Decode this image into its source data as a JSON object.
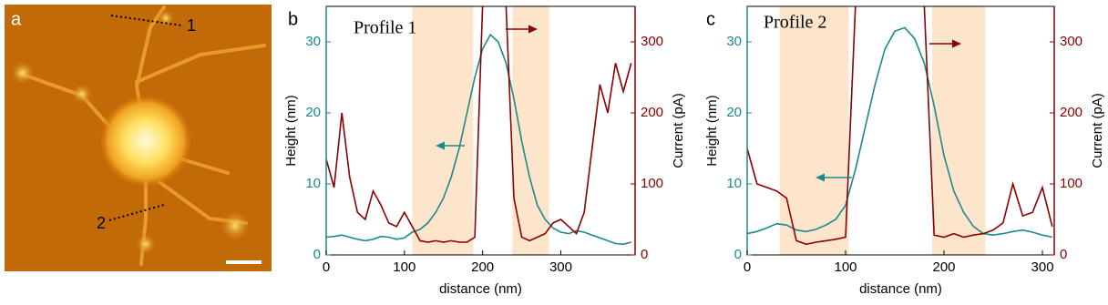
{
  "image_panel": {
    "label": "a",
    "markers": [
      "1",
      "2"
    ]
  },
  "chart_data": [
    {
      "type": "line",
      "panel_label": "b",
      "title": "Profile 1",
      "xlabel": "distance (nm)",
      "ylabel": "Height (nm)",
      "y2label": "Current (pA)",
      "xlim": [
        0,
        395
      ],
      "xticks": [
        0,
        100,
        200,
        300
      ],
      "ylim": [
        0,
        35
      ],
      "yticks": [
        0,
        10,
        20,
        30
      ],
      "y2lim": [
        0,
        350
      ],
      "y2ticks": [
        0,
        100,
        200,
        300
      ],
      "highlights": [
        [
          110,
          188
        ],
        [
          238,
          285
        ]
      ],
      "highlight_color": "#fde5cc",
      "x": [
        0,
        10,
        20,
        30,
        40,
        50,
        60,
        70,
        80,
        90,
        100,
        110,
        120,
        130,
        140,
        150,
        160,
        170,
        180,
        190,
        200,
        210,
        220,
        230,
        240,
        250,
        260,
        270,
        280,
        290,
        300,
        310,
        320,
        330,
        340,
        350,
        360,
        370,
        380,
        390
      ],
      "series": [
        {
          "color": "#1a8a8a",
          "values": [
            2.5,
            2.6,
            2.8,
            2.5,
            2.2,
            2.0,
            2.2,
            2.6,
            2.5,
            2.2,
            2.4,
            3.2,
            3.6,
            4.5,
            6.0,
            8.0,
            11,
            15,
            20,
            25,
            29,
            31,
            30,
            27,
            22,
            16,
            11,
            7,
            5,
            3.8,
            3.2,
            3.0,
            3.4,
            3.2,
            2.8,
            2.4,
            2.0,
            1.6,
            1.5,
            1.8
          ]
        },
        {
          "color": "#8b0000",
          "axis": "y2",
          "values": [
            135,
            95,
            200,
            110,
            60,
            50,
            90,
            70,
            45,
            40,
            60,
            40,
            20,
            18,
            20,
            18,
            20,
            18,
            18,
            25,
            350,
            null,
            null,
            350,
            80,
            25,
            20,
            25,
            30,
            45,
            50,
            40,
            30,
            60,
            150,
            240,
            200,
            270,
            230,
            270
          ]
        }
      ]
    },
    {
      "type": "line",
      "panel_label": "c",
      "title": "Profile 2",
      "xlabel": "distance (nm)",
      "ylabel": "Height (nm)",
      "y2label": "Current (pA)",
      "xlim": [
        0,
        312
      ],
      "xticks": [
        0,
        100,
        200,
        300
      ],
      "ylim": [
        0,
        35
      ],
      "yticks": [
        0,
        10,
        20,
        30
      ],
      "y2lim": [
        0,
        350
      ],
      "y2ticks": [
        0,
        100,
        200,
        300
      ],
      "highlights": [
        [
          33,
          103
        ],
        [
          188,
          242
        ]
      ],
      "highlight_color": "#fde5cc",
      "x": [
        0,
        10,
        20,
        30,
        40,
        50,
        60,
        70,
        80,
        90,
        100,
        110,
        120,
        130,
        140,
        150,
        160,
        170,
        180,
        190,
        200,
        210,
        220,
        230,
        240,
        250,
        260,
        270,
        280,
        290,
        300,
        310
      ],
      "series": [
        {
          "color": "#1a8a8a",
          "values": [
            3,
            3.3,
            3.8,
            4.4,
            4.2,
            3.5,
            3.3,
            3.6,
            4.2,
            5,
            7,
            12,
            18,
            24,
            29,
            31.5,
            32,
            30.5,
            27,
            21,
            14,
            9,
            6,
            4,
            3,
            2.8,
            3,
            3.3,
            3.5,
            3.2,
            2.8,
            2.5
          ]
        },
        {
          "color": "#8b0000",
          "axis": "y2",
          "values": [
            150,
            100,
            95,
            90,
            80,
            20,
            15,
            18,
            20,
            22,
            25,
            350,
            null,
            null,
            null,
            null,
            null,
            null,
            350,
            28,
            25,
            30,
            25,
            28,
            30,
            35,
            45,
            100,
            55,
            60,
            95,
            40
          ]
        }
      ]
    }
  ]
}
